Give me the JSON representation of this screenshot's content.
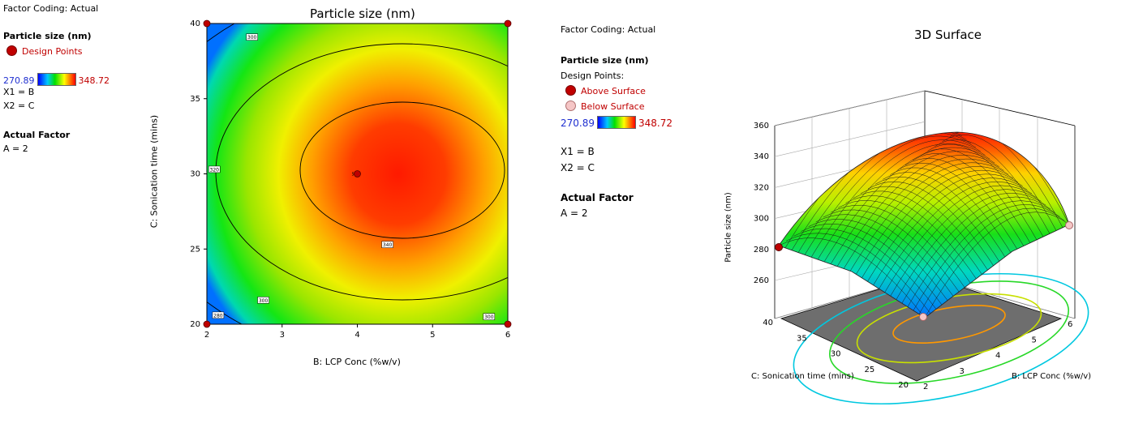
{
  "left_legend": {
    "coding": "Factor Coding: Actual",
    "response": "Particle size (nm)",
    "design_points": "Design Points",
    "scale_min": "270.89",
    "scale_max": "348.72",
    "x1": "X1 = B",
    "x2": "X2 = C",
    "actual_factor_title": "Actual Factor",
    "actual_factor": "A = 2"
  },
  "right_legend": {
    "coding": "Factor Coding: Actual",
    "response": "Particle size (nm)",
    "design_points": "Design Points:",
    "above": "Above Surface",
    "below": "Below Surface",
    "scale_min": "270.89",
    "scale_max": "348.72",
    "x1": "X1 = B",
    "x2": "X2 = C",
    "actual_factor_title": "Actual Factor",
    "actual_factor": "A = 2"
  },
  "colors": {
    "design_point": "#c00000",
    "below_point": "#f5c6c6",
    "scale_low": "#1f2fd0",
    "scale_high": "#d00000"
  },
  "chart_data": [
    {
      "type": "contour",
      "title": "Particle size (nm)",
      "xlabel": "B: LCP Conc (%w/v)",
      "ylabel": "C: Sonication time (mins)",
      "xlim": [
        2,
        6
      ],
      "ylim": [
        20,
        40
      ],
      "xticks": [
        "2",
        "3",
        "4",
        "5",
        "6"
      ],
      "yticks": [
        "20",
        "25",
        "30",
        "35",
        "40"
      ],
      "contour_levels": [
        280,
        300,
        320,
        340
      ],
      "contour_labels": [
        "300",
        "320",
        "340",
        "300",
        "280",
        "300"
      ],
      "design_points": [
        [
          2,
          40
        ],
        [
          6,
          40
        ],
        [
          2,
          20
        ],
        [
          6,
          20
        ],
        [
          4,
          30
        ]
      ],
      "center_point_label": "5",
      "color_range": [
        270.89,
        348.72
      ]
    },
    {
      "type": "surface",
      "title": "3D Surface",
      "xlabel": "B: LCP Conc (%w/v)",
      "ylabel": "C: Sonication time (mins)",
      "zlabel": "Particle size (nm)",
      "xticks": [
        "2",
        "3",
        "4",
        "5",
        "6"
      ],
      "yticks": [
        "20",
        "25",
        "30",
        "35",
        "40"
      ],
      "zticks": [
        "260",
        "280",
        "300",
        "320",
        "340",
        "360"
      ],
      "zlim": [
        260,
        360
      ],
      "above_surface_points": [
        [
          2,
          40
        ]
      ],
      "below_surface_points": [
        [
          6,
          40
        ],
        [
          4,
          30
        ]
      ]
    }
  ]
}
